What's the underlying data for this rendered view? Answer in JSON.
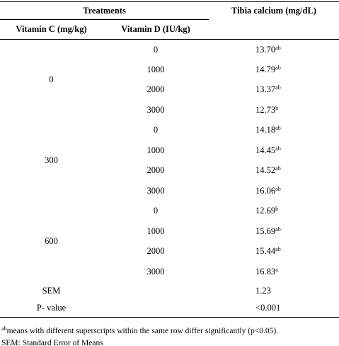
{
  "table": {
    "header": {
      "treatments": "Treatments",
      "response": "Tibia calcium (mg/dL)",
      "vitamin_c": "Vitamin C (mg/kg)",
      "vitamin_d": "Vitamin D (IU/kg)"
    },
    "groups": [
      {
        "vitamin_c": "0",
        "rows": [
          {
            "vitamin_d": "0",
            "value": "13.70",
            "sup": "ab"
          },
          {
            "vitamin_d": "1000",
            "value": "14.79",
            "sup": "ab"
          },
          {
            "vitamin_d": "2000",
            "value": "13.37",
            "sup": "ab"
          },
          {
            "vitamin_d": "3000",
            "value": "12.73",
            "sup": "b"
          }
        ]
      },
      {
        "vitamin_c": "300",
        "rows": [
          {
            "vitamin_d": "0",
            "value": "14.18",
            "sup": "ab"
          },
          {
            "vitamin_d": "1000",
            "value": "14.45",
            "sup": "ab"
          },
          {
            "vitamin_d": "2000",
            "value": "14.52",
            "sup": "ab"
          },
          {
            "vitamin_d": "3000",
            "value": "16.06",
            "sup": "ab"
          }
        ]
      },
      {
        "vitamin_c": "600",
        "rows": [
          {
            "vitamin_d": "0",
            "value": "12.69",
            "sup": "b"
          },
          {
            "vitamin_d": "1000",
            "value": "15.69",
            "sup": "ab"
          },
          {
            "vitamin_d": "2000",
            "value": "15.44",
            "sup": "ab"
          },
          {
            "vitamin_d": "3000",
            "value": "16.83",
            "sup": "a"
          }
        ]
      }
    ],
    "summary": [
      {
        "label": "SEM",
        "value": "1.23"
      },
      {
        "label": "P- value",
        "value": "<0.001"
      }
    ]
  },
  "footnotes": [
    {
      "sup": "ab",
      "text": "means with different superscripts within the same row differ significantly (p<0.05)."
    },
    {
      "text": "SEM: Standard Error of Means"
    }
  ]
}
